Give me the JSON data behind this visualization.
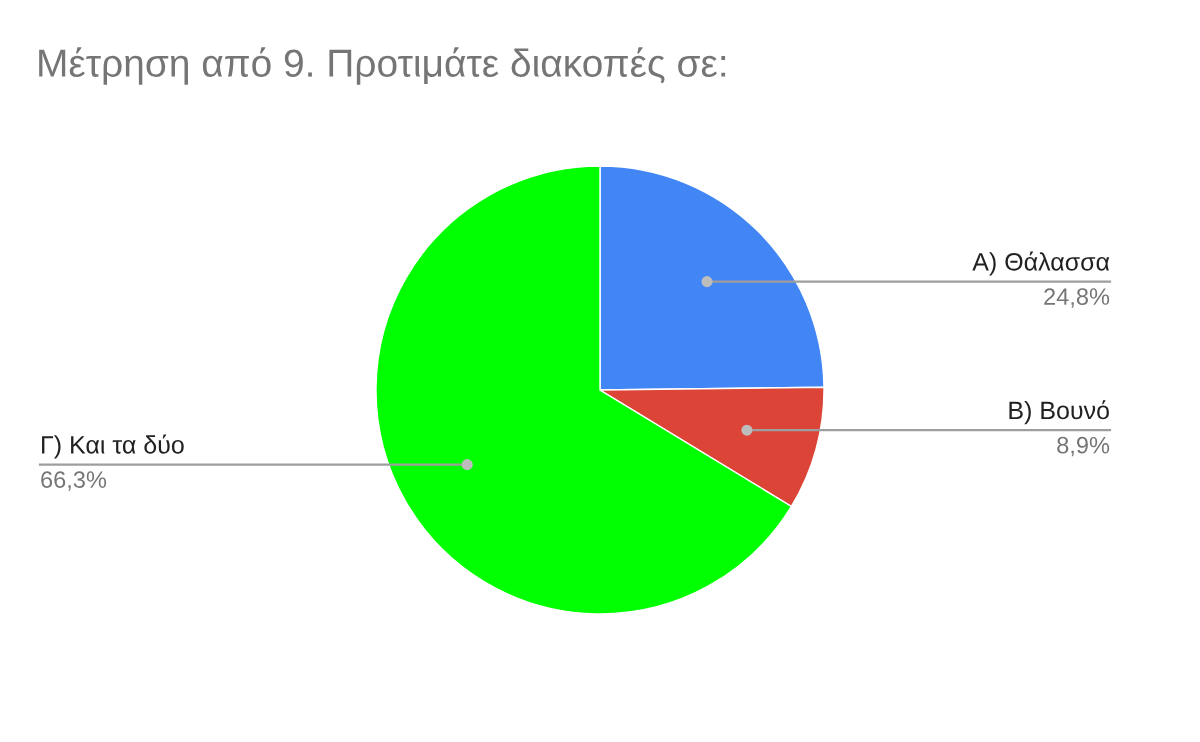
{
  "chart_data": {
    "type": "pie",
    "title": "Μέτρηση από 9. Προτιμάτε διακοπές σε:",
    "categories": [
      "Α) Θάλασσα",
      "Β) Βουνό",
      "Γ) Και τα δύο"
    ],
    "values": [
      24.8,
      8.9,
      66.3
    ],
    "colors": [
      "#4285f4",
      "#db4437",
      "#00ff00"
    ],
    "value_labels": [
      "24,8%",
      "8,9%",
      "66,3%"
    ],
    "legend": false
  }
}
